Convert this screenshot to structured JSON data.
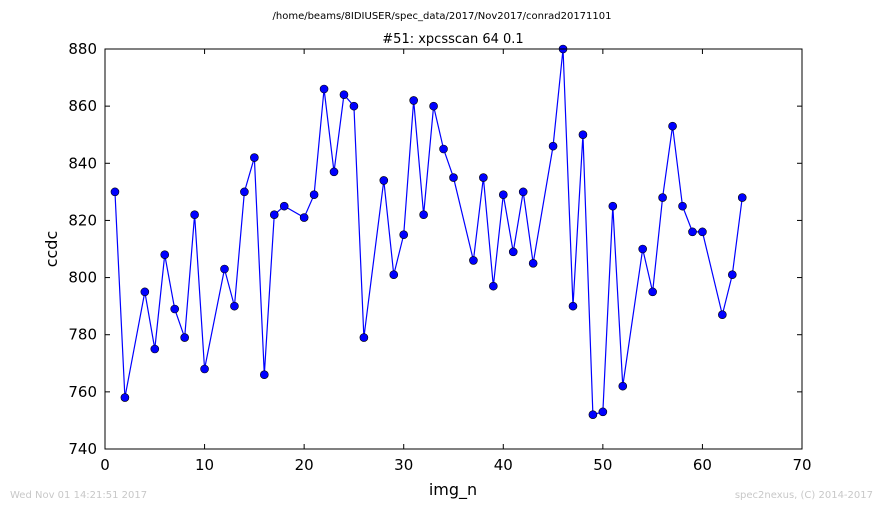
{
  "header": {
    "path": "/home/beams/8IDIUSER/spec_data/2017/Nov2017/conrad20171101"
  },
  "footer": {
    "timestamp": "Wed Nov 01 14:21:51 2017",
    "credit": "spec2nexus, (C) 2014-2017"
  },
  "colors": {
    "series": "#0000ff",
    "axes": "#000000",
    "footer": "#c8c8c8"
  },
  "chart_data": {
    "type": "line",
    "title": "#51: xpcsscan 64 0.1",
    "xlabel": "img_n",
    "ylabel": "ccdc",
    "xlim": [
      0,
      70
    ],
    "ylim": [
      740,
      880
    ],
    "xticks": [
      0,
      10,
      20,
      30,
      40,
      50,
      60,
      70
    ],
    "yticks": [
      740,
      760,
      780,
      800,
      820,
      840,
      860,
      880
    ],
    "grid": false,
    "marker": "circle",
    "series": [
      {
        "x": [
          1,
          2,
          4,
          5,
          6,
          7,
          8,
          9,
          10,
          12,
          13,
          14,
          15,
          16,
          17,
          18,
          20,
          21,
          22,
          23,
          24,
          25,
          26,
          28,
          29,
          30,
          31,
          32,
          33,
          34,
          35,
          37,
          38,
          39,
          40,
          41,
          42,
          43,
          45,
          46,
          47,
          48,
          49,
          50,
          51,
          52,
          54,
          55,
          56,
          57,
          58,
          59,
          60,
          62,
          63,
          64
        ],
        "y": [
          830,
          758,
          795,
          775,
          808,
          789,
          779,
          822,
          768,
          803,
          790,
          830,
          842,
          766,
          822,
          825,
          821,
          829,
          866,
          837,
          864,
          860,
          779,
          834,
          801,
          815,
          862,
          822,
          860,
          845,
          835,
          806,
          835,
          797,
          829,
          809,
          830,
          805,
          846,
          880,
          790,
          850,
          752,
          753,
          825,
          762,
          810,
          795,
          828,
          853,
          825,
          816,
          816,
          787,
          801,
          828
        ]
      }
    ]
  }
}
